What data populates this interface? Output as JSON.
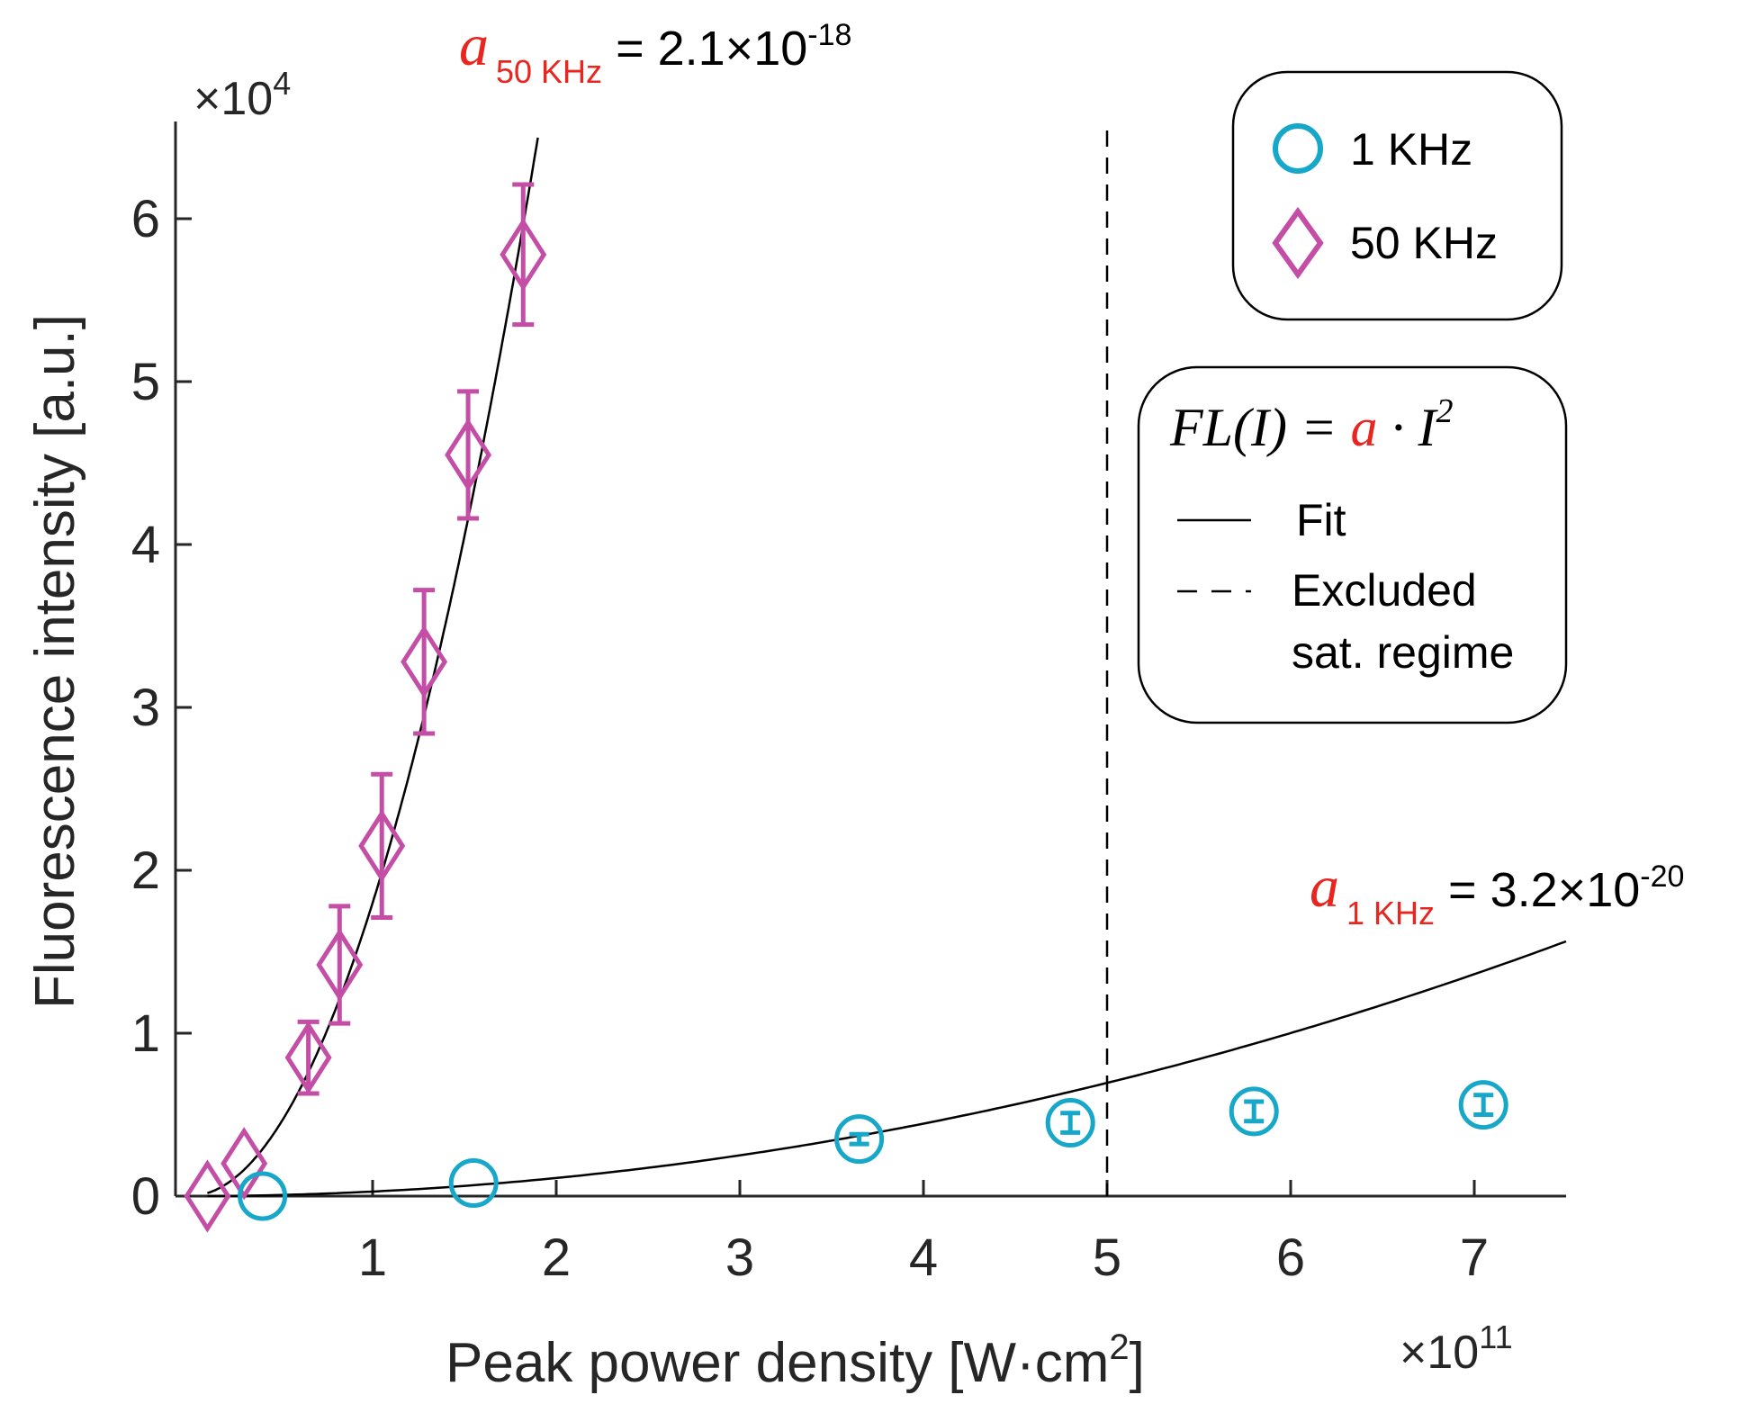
{
  "chart_data": {
    "type": "scatter",
    "title": "",
    "xlabel_main": "Peak power density [W·cm",
    "xlabel_sup": "2",
    "xlabel_end": "]",
    "ylabel": "Fluorescence intensity [a.u.]",
    "x_multiplier": {
      "base": "×10",
      "exp": "11"
    },
    "y_multiplier": {
      "base": "×10",
      "exp": "4"
    },
    "xlim": [
      0,
      7.5
    ],
    "ylim": [
      0,
      6.6
    ],
    "xticks": [
      1,
      2,
      3,
      4,
      5,
      6,
      7
    ],
    "xtick_labels": [
      "1",
      "2",
      "3",
      "4",
      "5",
      "6",
      "7"
    ],
    "yticks": [
      0,
      1,
      2,
      3,
      4,
      5,
      6
    ],
    "ytick_labels": [
      "0",
      "1",
      "2",
      "3",
      "4",
      "5",
      "6"
    ],
    "series": [
      {
        "name": "50 KHz",
        "marker": "diamond",
        "color": "#c44ea6",
        "x": [
          0.1,
          0.3,
          0.65,
          0.82,
          1.05,
          1.28,
          1.52,
          1.82
        ],
        "y": [
          0.0,
          0.2,
          0.85,
          1.42,
          2.15,
          3.28,
          4.55,
          5.78
        ],
        "err": [
          0.0,
          0.0,
          0.22,
          0.36,
          0.44,
          0.44,
          0.39,
          0.43
        ]
      },
      {
        "name": "1 KHz",
        "marker": "circle",
        "color": "#16a7c9",
        "x": [
          0.4,
          1.55,
          3.65,
          4.8,
          5.8,
          7.05
        ],
        "y": [
          0.0,
          0.08,
          0.35,
          0.45,
          0.52,
          0.56
        ],
        "err": [
          0.0,
          0.0,
          0.03,
          0.06,
          0.06,
          0.06
        ]
      }
    ],
    "fits": [
      {
        "name": "50 KHz fit",
        "a_coeff": 1.8,
        "x_start": 0.1,
        "x_end": 1.9
      },
      {
        "name": "1 KHz fit",
        "a_coeff": 0.0278,
        "x_start": 0.1,
        "x_end": 7.5
      }
    ],
    "excluded_line_x": 5,
    "annotations": {
      "a50": {
        "symbol": "a",
        "sub": "50 KHz",
        "value": " = 2.1×10",
        "exp": "-18"
      },
      "a1": {
        "symbol": "a",
        "sub": "1 KHz",
        "value": " = 3.2×10",
        "exp": "-20"
      }
    },
    "legend": {
      "placement": "top-right",
      "entries": [
        {
          "label": "1 KHz"
        },
        {
          "label": "50 KHz"
        }
      ]
    },
    "formula_box": {
      "lhs": "FL(I) = ",
      "a": "a",
      "rhs": " · I",
      "sup": "2",
      "fit_label": "Fit",
      "excluded_label_1": "Excluded",
      "excluded_label_2": "sat. regime"
    },
    "colors": {
      "series_50": "#c44ea6",
      "series_1": "#16a7c9",
      "annotation_red": "#e8261f",
      "axis": "#262626"
    }
  }
}
